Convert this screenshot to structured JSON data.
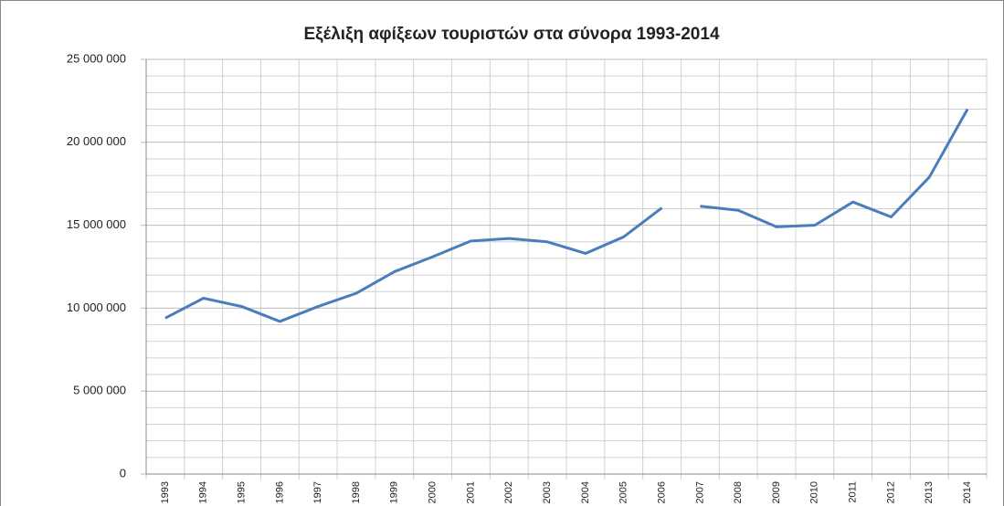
{
  "chart_data": {
    "type": "line",
    "title": "Εξέλιξη αφίξεων τουριστών στα σύνορα 1993-2014",
    "categories": [
      "1993",
      "1994",
      "1995",
      "1996",
      "1997",
      "1998",
      "1999",
      "2000",
      "2001",
      "2002",
      "2003",
      "2004",
      "2005",
      "2006",
      "2007",
      "2008",
      "2009",
      "2010",
      "2011",
      "2012",
      "2013",
      "2014"
    ],
    "series": [
      {
        "color": "#4a7ebb",
        "values": [
          9400000,
          10600000,
          10100000,
          9200000,
          10100000,
          10900000,
          12200000,
          13100000,
          14050000,
          14200000,
          14000000,
          13300000,
          14300000,
          16050000,
          null,
          null,
          null,
          null,
          null,
          null,
          null,
          null
        ]
      },
      {
        "color": "#4a7ebb",
        "values": [
          null,
          null,
          null,
          null,
          null,
          null,
          null,
          null,
          null,
          null,
          null,
          null,
          null,
          null,
          16150000,
          15900000,
          14900000,
          15000000,
          16400000,
          15500000,
          17900000,
          22000000
        ]
      }
    ],
    "ylim": [
      0,
      25000000
    ],
    "yticks": [
      0,
      {
        "value": 5000000,
        "label": "5 000 000"
      },
      {
        "value": 10000000,
        "label": "10 000 000"
      },
      {
        "value": 15000000,
        "label": "15 000 000"
      },
      {
        "value": 20000000,
        "label": "20 000 000"
      },
      {
        "value": 25000000,
        "label": "25 000 000"
      }
    ],
    "minor_yticks": [
      1000000,
      2000000,
      3000000,
      4000000,
      6000000,
      7000000,
      8000000,
      9000000,
      11000000,
      12000000,
      13000000,
      14000000,
      16000000,
      17000000,
      18000000,
      19000000,
      21000000,
      22000000,
      23000000,
      24000000
    ],
    "grid": true
  }
}
